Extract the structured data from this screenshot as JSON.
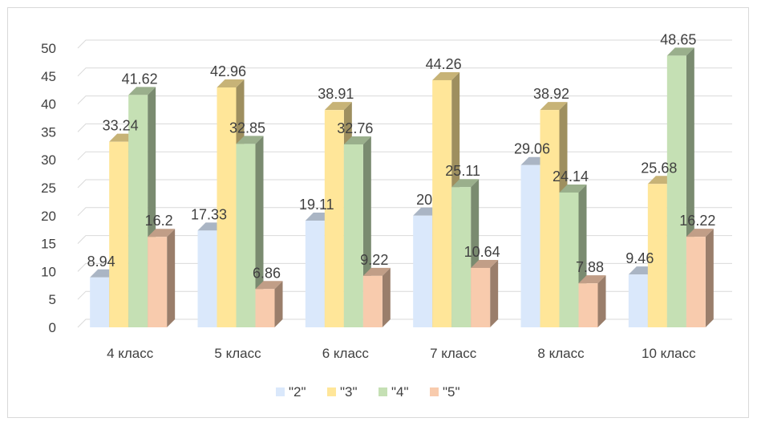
{
  "chart_data": {
    "type": "bar",
    "categories": [
      "4 класс",
      "5 класс",
      "6 класс",
      "7 класс",
      "8 класс",
      "10 класс"
    ],
    "series": [
      {
        "name": "\"2\"",
        "values": [
          8.94,
          17.33,
          19.11,
          20,
          29.06,
          9.46
        ],
        "color": "#dae8fb"
      },
      {
        "name": "\"3\"",
        "values": [
          33.24,
          42.96,
          38.91,
          44.26,
          38.92,
          25.68
        ],
        "color": "#ffe699"
      },
      {
        "name": "\"4\"",
        "values": [
          41.62,
          32.85,
          32.76,
          25.11,
          24.14,
          48.65
        ],
        "color": "#c5e0b4"
      },
      {
        "name": "\"5\"",
        "values": [
          16.2,
          6.86,
          9.22,
          10.64,
          7.88,
          16.22
        ],
        "color": "#f8cbad"
      }
    ],
    "data_labels": [
      [
        "8.94",
        "17.33",
        "19.11",
        "20",
        "29.06",
        "9.46"
      ],
      [
        "33.24",
        "42.96",
        "38.91",
        "44.26",
        "38.92",
        "25.68"
      ],
      [
        "41.62",
        "32.85",
        "32.76",
        "25.11",
        "24.14",
        "48.65"
      ],
      [
        "16.2",
        "6.86",
        "9.22",
        "10.64",
        "7.88",
        "16.22"
      ]
    ],
    "y_ticks": [
      "0",
      "5",
      "10",
      "15",
      "20",
      "25",
      "30",
      "35",
      "40",
      "45",
      "50"
    ],
    "ylim": [
      0,
      50
    ],
    "grid": true,
    "style": "3d-clustered-column",
    "legend_position": "bottom"
  }
}
